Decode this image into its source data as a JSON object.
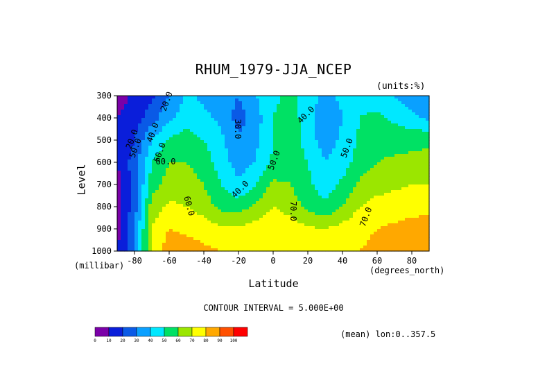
{
  "title": "RHUM_1979-JJA_NCEP",
  "units": "(units:%)",
  "ylabel": "Level",
  "yunit": "(millibar)",
  "xlabel": "Latitude",
  "xunit": "(degrees_north)",
  "contour_interval": "CONTOUR INTERVAL = 5.000E+00",
  "mean_label": "(mean) lon:0..357.5",
  "chart_data": {
    "type": "heatmap",
    "title": "RHUM_1979-JJA_NCEP",
    "xlabel": "Latitude",
    "ylabel": "Level",
    "xlim": [
      -90,
      90
    ],
    "ylim": [
      1000,
      300
    ],
    "x_ticks": [
      -80,
      -60,
      -40,
      -20,
      0,
      20,
      40,
      60,
      80
    ],
    "x_tick_labels": [
      "-80",
      "-60",
      "-40",
      "-20",
      "0",
      "20",
      "40",
      "60",
      "80"
    ],
    "y_ticks": [
      300,
      400,
      500,
      600,
      700,
      800,
      900,
      1000
    ],
    "y_tick_labels": [
      "300",
      "400",
      "500",
      "600",
      "700",
      "800",
      "900",
      "1000"
    ],
    "latitudes": [
      -90,
      -80,
      -70,
      -60,
      -50,
      -40,
      -30,
      -20,
      -10,
      0,
      10,
      20,
      30,
      40,
      50,
      60,
      70,
      80,
      90
    ],
    "levels": [
      300,
      400,
      500,
      600,
      700,
      800,
      900,
      1000
    ],
    "values": [
      [
        5,
        12,
        18,
        30,
        42,
        38,
        35,
        30,
        40,
        48,
        52,
        45,
        38,
        42,
        48,
        45,
        40,
        35,
        30
      ],
      [
        10,
        15,
        25,
        38,
        45,
        42,
        38,
        25,
        35,
        50,
        55,
        45,
        30,
        40,
        50,
        52,
        48,
        42,
        38
      ],
      [
        10,
        20,
        40,
        52,
        55,
        50,
        42,
        32,
        38,
        50,
        56,
        45,
        35,
        42,
        52,
        56,
        56,
        58,
        58
      ],
      [
        10,
        25,
        50,
        60,
        60,
        55,
        45,
        35,
        40,
        52,
        58,
        50,
        40,
        45,
        55,
        60,
        62,
        62,
        63
      ],
      [
        5,
        25,
        55,
        65,
        65,
        60,
        50,
        42,
        50,
        62,
        60,
        52,
        45,
        52,
        62,
        66,
        68,
        70,
        70
      ],
      [
        5,
        25,
        65,
        72,
        70,
        65,
        57,
        55,
        62,
        70,
        65,
        57,
        52,
        60,
        70,
        74,
        75,
        76,
        77
      ],
      [
        5,
        30,
        70,
        80,
        78,
        76,
        72,
        72,
        75,
        78,
        76,
        72,
        70,
        74,
        78,
        80,
        82,
        84,
        85
      ],
      [
        10,
        30,
        72,
        86,
        85,
        82,
        80,
        80,
        80,
        80,
        80,
        78,
        78,
        79,
        80,
        82,
        84,
        88,
        90
      ]
    ],
    "contour_levels": [
      0,
      10,
      20,
      30,
      40,
      50,
      60,
      70,
      80,
      90,
      100
    ],
    "contour_line_labels": [
      "20.0",
      "20.0",
      "40.0",
      "50.0",
      "50.0",
      "60.0",
      "30.0",
      "40.0",
      "50.0",
      "40.0",
      "50.0",
      "60.0",
      "70.0",
      "70.0"
    ],
    "colorbar": {
      "labels": [
        "0",
        "10",
        "20",
        "30",
        "40",
        "50",
        "60",
        "70",
        "80",
        "90",
        "100"
      ],
      "colors": [
        "#7b00a8",
        "#0a1eda",
        "#0a5ae6",
        "#0aa0ff",
        "#00e8ff",
        "#00e164",
        "#9be600",
        "#ffff00",
        "#ffa800",
        "#ff5000",
        "#ff0000"
      ]
    },
    "grid": false
  }
}
